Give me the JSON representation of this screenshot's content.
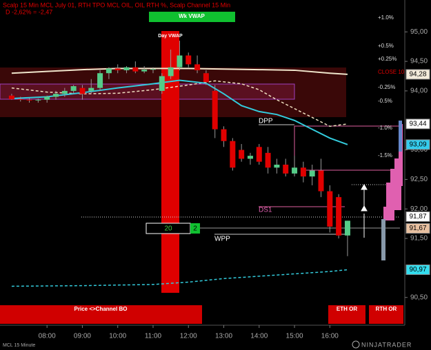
{
  "chart_data": {
    "type": "candlestick",
    "title": "Scalp 15 Min MCL July 01, RTH TPO MCL OIL, OIL RTH %, Scalp Channel 15 Min",
    "subtitle": "D -2,62% = -2,47",
    "instrument": "MCL 15 Minute",
    "brand": "NINJATRADER",
    "xlim": [
      6.67,
      18.12
    ],
    "ylim": [
      90.03,
      95.54
    ],
    "xticks": [
      {
        "value": 8,
        "label": "08:00"
      },
      {
        "value": 9,
        "label": "09:00"
      },
      {
        "value": 10,
        "label": "10:00"
      },
      {
        "value": 11,
        "label": "11:00"
      },
      {
        "value": 12,
        "label": "12:00"
      },
      {
        "value": 13,
        "label": "13:00"
      },
      {
        "value": 14,
        "label": "14:00"
      },
      {
        "value": 15,
        "label": "15:00"
      },
      {
        "value": 16,
        "label": "16:00"
      }
    ],
    "yticks": [
      {
        "value": 95,
        "label": "95,00"
      },
      {
        "value": 94.5,
        "label": "94,50"
      },
      {
        "value": 94,
        "label": "94,00"
      },
      {
        "value": 93,
        "label": "93,00"
      },
      {
        "value": 92.5,
        "label": "92,50"
      },
      {
        "value": 92,
        "label": "92,00"
      },
      {
        "value": 91.5,
        "label": "91,50"
      },
      {
        "value": 90.5,
        "label": "90,50"
      }
    ],
    "up_color": "#55cc88",
    "down_color": "#e00000",
    "candles": {
      "x": [
        7.0,
        7.25,
        7.5,
        7.75,
        8.0,
        8.25,
        8.5,
        8.75,
        9.0,
        9.25,
        9.5,
        9.75,
        10.0,
        10.25,
        10.5,
        10.75,
        11.0,
        11.25,
        11.5,
        11.75,
        12.0,
        12.25,
        12.5,
        12.75,
        13.0,
        13.25,
        13.5,
        13.75,
        14.0,
        14.25,
        14.5,
        14.75,
        15.0,
        15.25,
        15.5,
        15.75,
        16.0,
        16.25,
        16.5
      ],
      "open": [
        93.92,
        93.86,
        93.85,
        93.84,
        93.85,
        93.9,
        93.95,
        94.0,
        94.05,
        94.0,
        94.05,
        94.3,
        94.38,
        94.35,
        94.4,
        94.33,
        94.36,
        94.0,
        94.25,
        94.4,
        94.6,
        94.45,
        94.3,
        94.0,
        93.35,
        93.15,
        93.0,
        92.85,
        93.05,
        92.95,
        92.7,
        92.75,
        92.6,
        92.7,
        92.55,
        92.65,
        92.3,
        92.2,
        91.55
      ],
      "high": [
        93.95,
        93.9,
        93.88,
        93.87,
        93.92,
        94.0,
        94.05,
        94.1,
        94.1,
        94.2,
        94.35,
        94.4,
        94.45,
        94.42,
        94.5,
        94.42,
        94.4,
        94.3,
        94.7,
        94.85,
        94.65,
        94.6,
        94.35,
        94.1,
        93.4,
        93.2,
        93.1,
        92.95,
        93.1,
        93.05,
        92.85,
        92.85,
        92.9,
        92.8,
        92.75,
        92.85,
        92.4,
        92.25,
        91.8
      ],
      "low": [
        93.85,
        93.82,
        93.8,
        93.8,
        93.8,
        93.85,
        93.9,
        93.95,
        93.85,
        93.95,
        94.0,
        94.2,
        94.3,
        94.3,
        94.3,
        94.3,
        94.3,
        93.95,
        94.2,
        94.35,
        94.4,
        94.3,
        94.1,
        93.2,
        93.05,
        92.65,
        92.8,
        92.75,
        92.75,
        92.6,
        92.6,
        92.55,
        92.55,
        92.45,
        92.4,
        92.2,
        91.6,
        91.5,
        91.2
      ],
      "close": [
        93.86,
        93.85,
        93.84,
        93.85,
        93.9,
        93.95,
        94.0,
        94.08,
        93.95,
        94.05,
        94.3,
        94.38,
        94.35,
        94.4,
        94.33,
        94.36,
        94.37,
        94.25,
        94.4,
        94.6,
        94.45,
        94.35,
        94.15,
        93.35,
        93.15,
        92.7,
        92.85,
        92.9,
        92.8,
        92.7,
        92.75,
        92.6,
        92.7,
        92.55,
        92.65,
        92.3,
        91.7,
        91.55,
        91.8
      ]
    },
    "lines": [
      {
        "color": "#f0e6cc",
        "dashed": false,
        "x": [
          7,
          8,
          9,
          10,
          11,
          12,
          13,
          14,
          15,
          16,
          16.5
        ],
        "values": [
          94.3,
          94.33,
          94.36,
          94.38,
          94.38,
          94.38,
          94.37,
          94.36,
          94.35,
          94.3,
          94.28
        ]
      },
      {
        "color": "#f0e0c0",
        "dashed": true,
        "x": [
          7,
          8,
          9,
          10,
          11,
          12,
          12.75,
          13.5,
          14,
          14.5,
          15,
          15.5,
          16,
          16.5
        ],
        "values": [
          94.05,
          93.98,
          93.95,
          93.96,
          94.02,
          94.1,
          94.17,
          94.12,
          94.02,
          93.85,
          93.7,
          93.55,
          93.4,
          93.44
        ]
      },
      {
        "color": "#33ccdd",
        "dashed": false,
        "x": [
          7,
          8,
          9,
          10,
          11,
          11.75,
          12.5,
          13,
          13.5,
          14,
          14.5,
          15,
          15.5,
          16,
          16.5
        ],
        "values": [
          93.87,
          93.9,
          93.97,
          94.05,
          94.12,
          94.18,
          94.13,
          93.95,
          93.75,
          93.65,
          93.6,
          93.5,
          93.35,
          93.2,
          93.09
        ]
      },
      {
        "color": "#33ccdd",
        "dashed": true,
        "x": [
          7,
          9,
          11,
          12,
          13,
          14,
          15,
          16,
          16.5
        ],
        "values": [
          90.69,
          90.7,
          90.72,
          90.76,
          90.82,
          90.86,
          90.9,
          90.94,
          90.97
        ]
      }
    ],
    "price_flags": [
      {
        "value": 94.28,
        "label": "94,28",
        "color": "#f4ecdc"
      },
      {
        "value": 93.44,
        "label": "93,44",
        "color": "#ffffff"
      },
      {
        "value": 93.09,
        "label": "93,09",
        "color": "#33ccee"
      },
      {
        "value": 91.87,
        "label": "91,87",
        "color": "#ffffff"
      },
      {
        "value": 91.67,
        "label": "91,67",
        "color": "#e8c0a0"
      },
      {
        "value": 90.97,
        "label": "90,97",
        "color": "#33ddee"
      }
    ],
    "pct_labels": [
      "+1.0%",
      "+0.5%",
      "+0.25%",
      "CLOSE 10",
      "-0.25%",
      "-0.5%",
      "-1.0%",
      "-1.5%"
    ],
    "level_labels": [
      "DPP",
      "DS1",
      "WPP"
    ],
    "vwap_labels": [
      "Day VWAP",
      "Wk VWAP"
    ],
    "boxes": [
      "20",
      "2"
    ],
    "footer_buttons": [
      "Price <>Channel BO",
      "ETH OR",
      "RTH OR"
    ]
  }
}
